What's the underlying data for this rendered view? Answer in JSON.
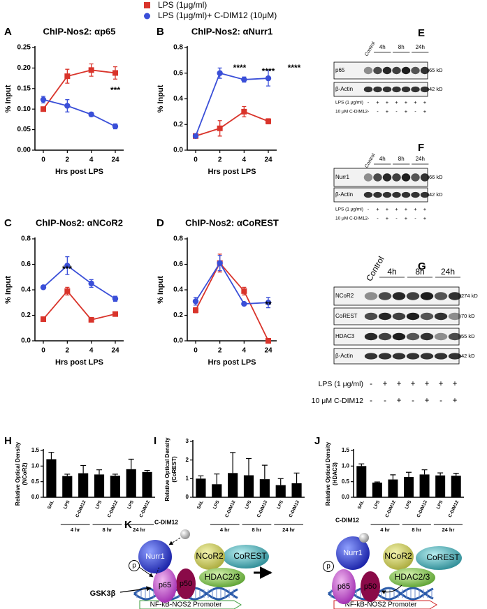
{
  "chart_data": [
    {
      "type": "line",
      "panel": "A",
      "title": "ChIP-Nos2: αp65",
      "xlabel": "Hrs post LPS",
      "ylabel": "% Input",
      "categories": [
        "0",
        "2",
        "4",
        "24"
      ],
      "ylim": [
        0,
        0.25
      ],
      "yticks": [
        {
          "value": 0,
          "label": "0.00"
        },
        0.05,
        {
          "value": 0.1,
          "label": "0.10"
        },
        0.15,
        {
          "value": 0.2,
          "label": "0.20"
        },
        0.25
      ],
      "series": [
        {
          "name": "LPS (1μg/ml)",
          "color": "#d9342b",
          "marker": "square",
          "values": [
            0.1,
            0.18,
            0.195,
            0.188
          ],
          "errors": [
            0.005,
            0.017,
            0.015,
            0.015
          ]
        },
        {
          "name": "LPS (1μg/ml)+ C-DIM12 (10μM)",
          "color": "#3a4fd8",
          "marker": "circle",
          "values": [
            0.123,
            0.108,
            0.087,
            0.058
          ],
          "errors": [
            0.008,
            0.015,
            0.005,
            0.006
          ]
        }
      ],
      "annotations": [
        "***"
      ]
    },
    {
      "type": "line",
      "panel": "B",
      "title": "ChIP-Nos2: αNurr1",
      "xlabel": "Hrs post LPS",
      "ylabel": "% Input",
      "categories": [
        "0",
        "2",
        "4",
        "24"
      ],
      "ylim": [
        0,
        0.8
      ],
      "yticks": [
        {
          "value": 0,
          "label": "0.0"
        },
        0.2,
        0.4,
        0.6,
        0.8
      ],
      "series": [
        {
          "color": "#d9342b",
          "marker": "square",
          "values": [
            0.11,
            0.17,
            0.3,
            0.225
          ],
          "errors": [
            0.01,
            0.06,
            0.04,
            0.02
          ]
        },
        {
          "color": "#3a4fd8",
          "marker": "circle",
          "values": [
            0.11,
            0.6,
            0.55,
            0.56
          ],
          "errors": [
            0.01,
            0.04,
            0.02,
            0.06
          ]
        }
      ],
      "annotations": [
        "****",
        "****",
        "****"
      ]
    },
    {
      "type": "line",
      "panel": "C",
      "title": "ChIP-Nos2: αNCoR2",
      "xlabel": "Hrs post LPS",
      "ylabel": "% Input",
      "categories": [
        "0",
        "2",
        "4",
        "24"
      ],
      "ylim": [
        0,
        0.8
      ],
      "yticks": [
        {
          "value": 0,
          "label": "0.0"
        },
        0.2,
        0.4,
        0.6,
        0.8
      ],
      "series": [
        {
          "color": "#d9342b",
          "marker": "square",
          "values": [
            0.17,
            0.39,
            0.165,
            0.21
          ],
          "errors": [
            0.01,
            0.03,
            0.01,
            0.01
          ]
        },
        {
          "color": "#3a4fd8",
          "marker": "circle",
          "values": [
            0.42,
            0.59,
            0.45,
            0.33
          ],
          "errors": [
            0.01,
            0.07,
            0.03,
            0.02
          ]
        }
      ],
      "annotations": [
        "***"
      ]
    },
    {
      "type": "line",
      "panel": "D",
      "title": "ChIP-Nos2: αCoREST",
      "xlabel": "Hrs post LPS",
      "ylabel": "% Input",
      "categories": [
        "0",
        "2",
        "4",
        "24"
      ],
      "ylim": [
        0,
        0.8
      ],
      "yticks": [
        {
          "value": 0,
          "label": "0.0"
        },
        0.2,
        0.4,
        0.6,
        0.8
      ],
      "series": [
        {
          "color": "#d9342b",
          "marker": "square",
          "values": [
            0.24,
            0.61,
            0.39,
            0
          ],
          "errors": [
            0.02,
            0.07,
            0.03,
            0
          ]
        },
        {
          "color": "#3a4fd8",
          "marker": "circle",
          "values": [
            0.31,
            0.61,
            0.29,
            0.3
          ],
          "errors": [
            0.03,
            0.06,
            0.01,
            0.04
          ]
        }
      ],
      "annotations": [
        "**"
      ]
    },
    {
      "type": "bar",
      "panel": "H",
      "ylabel": [
        "Relative Optical Density",
        "(NCoR2)"
      ],
      "color": "#000000",
      "categories": [
        "SAL",
        "LPS",
        "C-DIM12",
        "LPS",
        "C-DIM12",
        "LPS",
        "C-DIM12"
      ],
      "groups": [
        "4 hr",
        "8 hr",
        "24 hr"
      ],
      "ylim": [
        0,
        1.5
      ],
      "yticks": [
        {
          "value": 0,
          "label": "0.0"
        },
        0.5,
        {
          "value": 1,
          "label": "1.0"
        },
        1.5
      ],
      "values": [
        1.22,
        0.68,
        0.77,
        0.73,
        0.69,
        0.9,
        0.81
      ],
      "errors": [
        0.22,
        0.06,
        0.25,
        0.15,
        0.05,
        0.32,
        0.05
      ]
    },
    {
      "type": "bar",
      "panel": "I",
      "ylabel": [
        "Relative Optical Density",
        "(CoREST)"
      ],
      "color": "#000000",
      "categories": [
        "SAL",
        "LPS",
        "C-DIM12",
        "LPS",
        "C-DIM12",
        "LPS",
        "C-DIM12"
      ],
      "groups": [
        "4 hr",
        "8 hr",
        "24 hr"
      ],
      "ylim": [
        0,
        3
      ],
      "yticks": [
        0,
        1,
        2,
        3
      ],
      "values": [
        1.0,
        0.7,
        1.3,
        1.18,
        0.97,
        0.65,
        0.75
      ],
      "errors": [
        0.15,
        0.55,
        1.1,
        0.9,
        0.75,
        0.35,
        0.55
      ]
    },
    {
      "type": "bar",
      "panel": "J",
      "ylabel": [
        "Relative Optical Density",
        "(HDAC3)"
      ],
      "color": "#000000",
      "categories": [
        "SAL",
        "LPS",
        "C-DIM12",
        "LPS",
        "C-DIM12",
        "LPS",
        "C-DIM12"
      ],
      "groups": [
        "4 hr",
        "8 hr",
        "24 hr"
      ],
      "ylim": [
        0,
        1.5
      ],
      "yticks": [
        {
          "value": 0,
          "label": "0.0"
        },
        0.5,
        {
          "value": 1,
          "label": "1.0"
        },
        1.5
      ],
      "values": [
        1.0,
        0.47,
        0.57,
        0.65,
        0.73,
        0.7,
        0.69
      ],
      "errors": [
        0.07,
        0.02,
        0.15,
        0.15,
        0.15,
        0.08,
        0.08
      ]
    }
  ],
  "blots": [
    {
      "panel": "E",
      "control": "Control",
      "times": [
        "4h",
        "8h",
        "24h"
      ],
      "rows": [
        {
          "label": "p65",
          "size": "65 kD"
        },
        {
          "label": "β-Actin",
          "size": "42 kD"
        }
      ],
      "treatments": [
        {
          "label": "LPS (1 μg/ml)",
          "signs": [
            "-",
            "+",
            "+",
            "+",
            "+",
            "+",
            "+"
          ]
        },
        {
          "label": "10 μM C-DIM12",
          "signs": [
            "-",
            "-",
            "+",
            "-",
            "+",
            "-",
            "+"
          ]
        }
      ]
    },
    {
      "panel": "F",
      "control": "Control",
      "times": [
        "4h",
        "8h",
        "24h"
      ],
      "rows": [
        {
          "label": "Nurr1",
          "size": "66 kD"
        },
        {
          "label": "β-Actin",
          "size": "42 kD"
        }
      ],
      "treatments": [
        {
          "label": "LPS (1 μg/ml)",
          "signs": [
            "-",
            "+",
            "+",
            "+",
            "+",
            "+",
            "+"
          ]
        },
        {
          "label": "10 μM C-DIM12",
          "signs": [
            "-",
            "-",
            "+",
            "-",
            "+",
            "-",
            "+"
          ]
        }
      ]
    },
    {
      "panel": "G",
      "control": "Control",
      "times": [
        "4h",
        "8h",
        "24h"
      ],
      "rows": [
        {
          "label": "NCoR2",
          "size": "274 kD"
        },
        {
          "label": "CoREST",
          "size": "70 kD"
        },
        {
          "label": "HDAC3",
          "size": "55 kD"
        },
        {
          "label": "β-Actin",
          "size": "42 kD"
        }
      ],
      "treatments": [
        {
          "label": "LPS (1 μg/ml)",
          "signs": [
            "-",
            "+",
            "+",
            "+",
            "+",
            "+",
            "+"
          ]
        },
        {
          "label": "10 μM C-DIM12",
          "signs": [
            "-",
            "-",
            "+",
            "-",
            "+",
            "-",
            "+"
          ]
        }
      ]
    }
  ],
  "diagram": {
    "panel": "K",
    "left": {
      "ligand": "C-DIM12",
      "nurr1": "Nurr1",
      "ncor2": "NCoR2",
      "corest": "CoREST",
      "hdac": "HDAC2/3",
      "phos": "p",
      "p65": "p65",
      "p50": "p50",
      "kinase": "GSK3β",
      "promoter": "NF-kB-NOS2 Promoter"
    },
    "right": {
      "ligand": "C-DIM12",
      "nurr1": "Nurr1",
      "ncor2": "NCoR2",
      "corest": "CoREST",
      "hdac": "HDAC2/3",
      "phos": "p",
      "p65": "p65",
      "p50": "p50",
      "promoter": "NF-kB-NOS2 Promoter"
    }
  }
}
